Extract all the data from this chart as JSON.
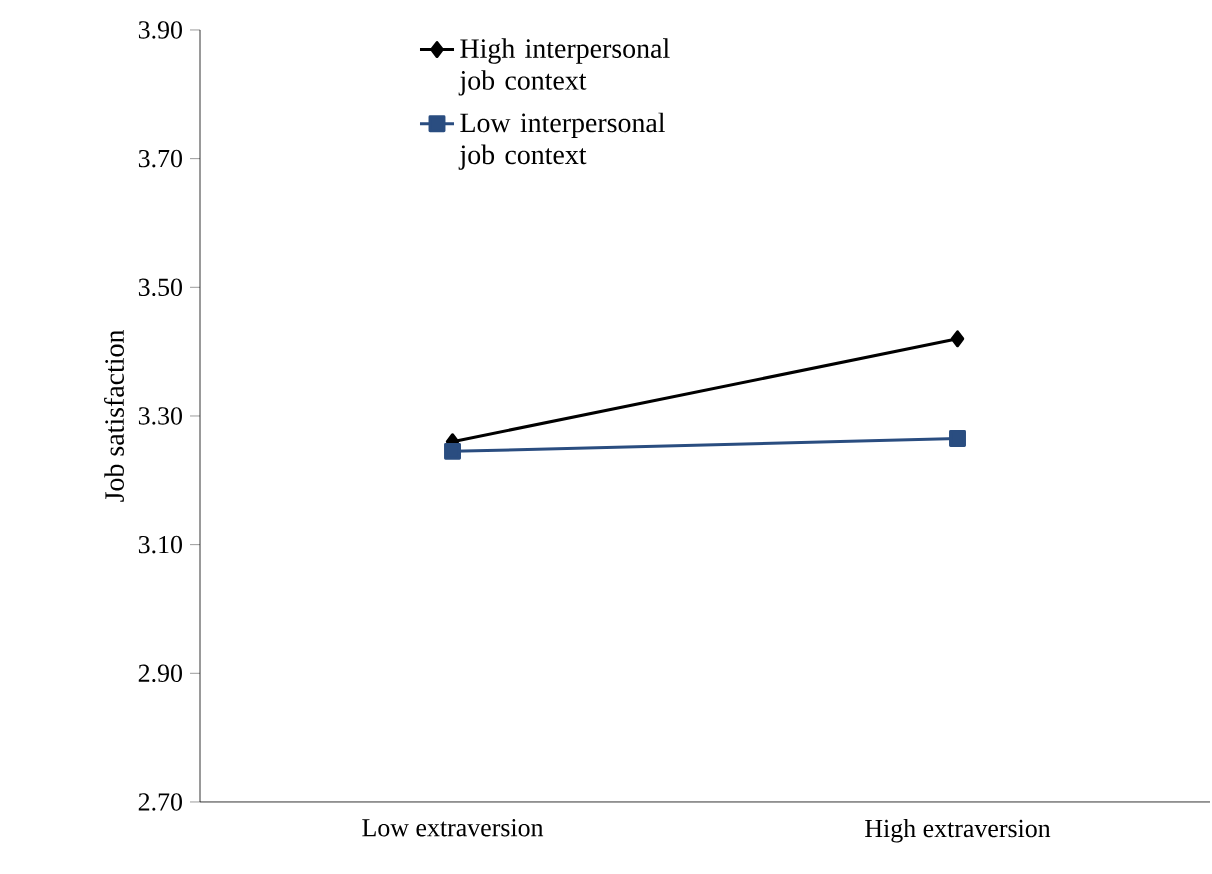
{
  "chart_data": {
    "type": "line",
    "ylabel": "Job satisfaction",
    "categories": [
      "Low extraversion",
      "High extraversion"
    ],
    "series": [
      {
        "name": "High interpersonal job context",
        "color": "#000000",
        "marker": "diamond",
        "values": [
          3.26,
          3.42
        ]
      },
      {
        "name": "Low interpersonal job context",
        "color": "#2a4d80",
        "marker": "square",
        "values": [
          3.245,
          3.265
        ]
      }
    ],
    "ylim": [
      2.7,
      3.9
    ],
    "yticks": [
      {
        "value": 2.7,
        "label": "2.70"
      },
      {
        "value": 2.9,
        "label": "2.90"
      },
      {
        "value": 3.1,
        "label": "3.10"
      },
      {
        "value": 3.3,
        "label": "3.30"
      },
      {
        "value": 3.5,
        "label": "3.50"
      },
      {
        "value": 3.7,
        "label": "3.70"
      },
      {
        "value": 3.9,
        "label": "3.90"
      }
    ],
    "grid": false,
    "legend": "top",
    "line_style": "solid"
  }
}
